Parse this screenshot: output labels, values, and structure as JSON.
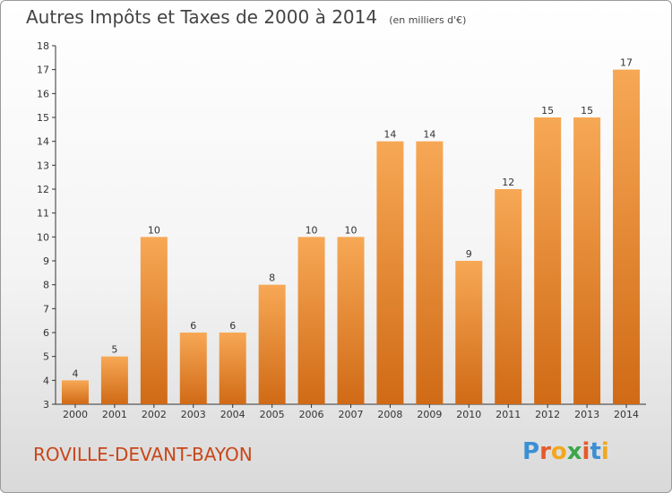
{
  "header": {
    "title": "Autres Impôts et Taxes de 2000 à 2014",
    "unit": "(en milliers d'€)"
  },
  "footer": {
    "commune": "ROVILLE-DEVANT-BAYON",
    "logo_letters": [
      "P",
      "r",
      "o",
      "x",
      "i",
      "t",
      "i"
    ],
    "logo_colors": [
      "#3b8fd4",
      "#e55a2b",
      "#f0a81e",
      "#3aa64a",
      "#e55a2b",
      "#3b8fd4",
      "#f0a81e"
    ]
  },
  "colors": {
    "bar_top": "#f7a855",
    "bar_bottom": "#d06a16",
    "axis": "#333333",
    "grid": "#cfcfcf"
  },
  "chart_data": {
    "type": "bar",
    "title": "Autres Impôts et Taxes de 2000 à 2014",
    "xlabel": "",
    "ylabel": "",
    "ylim": [
      3,
      18
    ],
    "yticks": [
      3,
      4,
      5,
      6,
      7,
      8,
      9,
      10,
      11,
      12,
      13,
      14,
      15,
      16,
      17,
      18
    ],
    "grid": false,
    "categories": [
      "2000",
      "2001",
      "2002",
      "2003",
      "2004",
      "2005",
      "2006",
      "2007",
      "2008",
      "2009",
      "2010",
      "2011",
      "2012",
      "2013",
      "2014"
    ],
    "values": [
      4,
      5,
      10,
      6,
      6,
      8,
      10,
      10,
      14,
      14,
      9,
      12,
      15,
      15,
      17
    ]
  }
}
